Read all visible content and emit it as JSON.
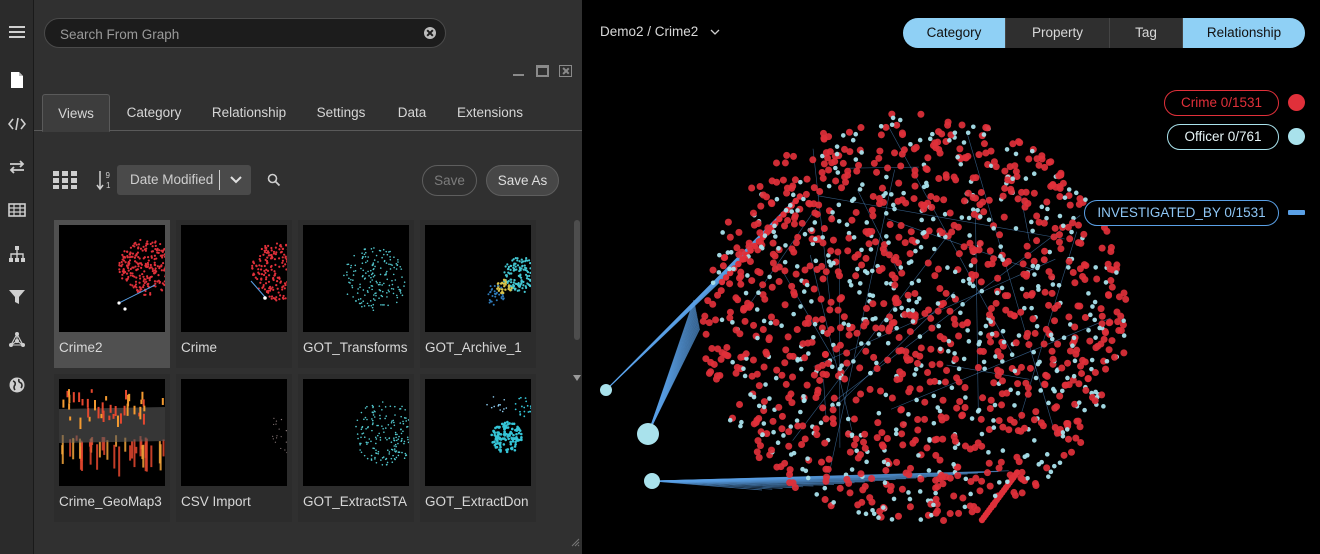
{
  "sidebar": {
    "icons": [
      "menu-icon",
      "file-icon",
      "code-icon",
      "swap-icon",
      "table-icon",
      "hierarchy-icon",
      "filter-icon",
      "network-icon",
      "globe-icon"
    ]
  },
  "search": {
    "placeholder": "Search From Graph",
    "value": ""
  },
  "panel_tabs": [
    {
      "label": "Views",
      "active": true
    },
    {
      "label": "Category"
    },
    {
      "label": "Relationship"
    },
    {
      "label": "Settings"
    },
    {
      "label": "Data"
    },
    {
      "label": "Extensions"
    }
  ],
  "toolbar": {
    "sort_value": "Date Modified",
    "save_label": "Save",
    "save_as_label": "Save As"
  },
  "views": [
    {
      "label": "Crime2",
      "selected": true
    },
    {
      "label": "Crime"
    },
    {
      "label": "GOT_Transforms"
    },
    {
      "label": "GOT_Archive_1"
    },
    {
      "label": "Crime_GeoMap3"
    },
    {
      "label": "CSV Import"
    },
    {
      "label": "GOT_ExtractSTA"
    },
    {
      "label": "GOT_ExtractDon"
    }
  ],
  "graph": {
    "breadcrumb": "Demo2 / Crime2",
    "modes": [
      "Category",
      "Property",
      "Tag",
      "Relationship"
    ],
    "active_modes": [
      "Category",
      "Relationship"
    ],
    "legend": [
      {
        "label": "Crime 0/1531",
        "color": "#e0303a"
      },
      {
        "label": "Officer 0/761",
        "color": "#a9e2ec"
      },
      {
        "label": "INVESTIGATED_BY 0/1531",
        "color": "#5aa0e6"
      }
    ]
  }
}
